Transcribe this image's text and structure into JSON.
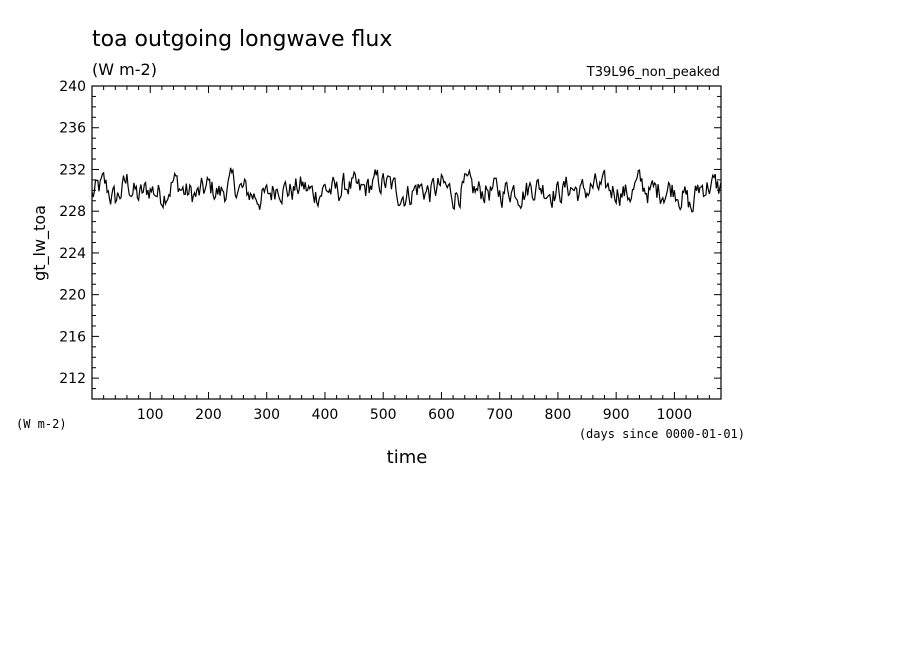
{
  "chart_data": {
    "type": "line",
    "title": "toa outgoing longwave flux",
    "subtitle": "(W m-2)",
    "run_label": "T39L96_non_peaked",
    "ylabel": "gt_lw_toa",
    "yunits": "(W m-2)",
    "xlabel": "time",
    "xunits": "(days since 0000-01-01)",
    "xlim": [
      0,
      1080
    ],
    "ylim": [
      210,
      240
    ],
    "yticks": [
      212,
      216,
      220,
      224,
      228,
      232,
      236,
      240
    ],
    "xticks": [
      100,
      200,
      300,
      400,
      500,
      600,
      700,
      800,
      900,
      1000
    ],
    "grid": false,
    "series": [
      {
        "color": "#000000",
        "x": [
          0,
          20,
          40,
          60,
          80,
          100,
          120,
          140,
          160,
          180,
          200,
          220,
          240,
          260,
          280,
          300,
          320,
          340,
          360,
          380,
          400,
          420,
          440,
          460,
          480,
          500,
          520,
          540,
          560,
          580,
          600,
          620,
          640,
          660,
          680,
          700,
          720,
          740,
          760,
          780,
          800,
          820,
          840,
          860,
          880,
          900,
          920,
          940,
          960,
          980,
          1000,
          1020,
          1030,
          1040,
          1060,
          1080
        ],
        "y": [
          229.5,
          230.5,
          229.0,
          230.8,
          229.3,
          230.2,
          229.6,
          230.9,
          229.8,
          229.4,
          230.3,
          229.7,
          230.6,
          229.9,
          229.5,
          229.3,
          230.7,
          229.9,
          230.4,
          229.6,
          230.2,
          229.8,
          230.6,
          229.7,
          230.5,
          230.8,
          230.0,
          229.6,
          230.3,
          229.8,
          230.4,
          229.6,
          230.2,
          229.8,
          230.1,
          229.7,
          230.3,
          229.9,
          230.5,
          230.2,
          229.8,
          230.4,
          229.7,
          230.3,
          230.0,
          230.2,
          229.6,
          230.6,
          229.8,
          230.1,
          230.3,
          229.2,
          228.0,
          230.2,
          230.6,
          230.1
        ]
      }
    ]
  }
}
